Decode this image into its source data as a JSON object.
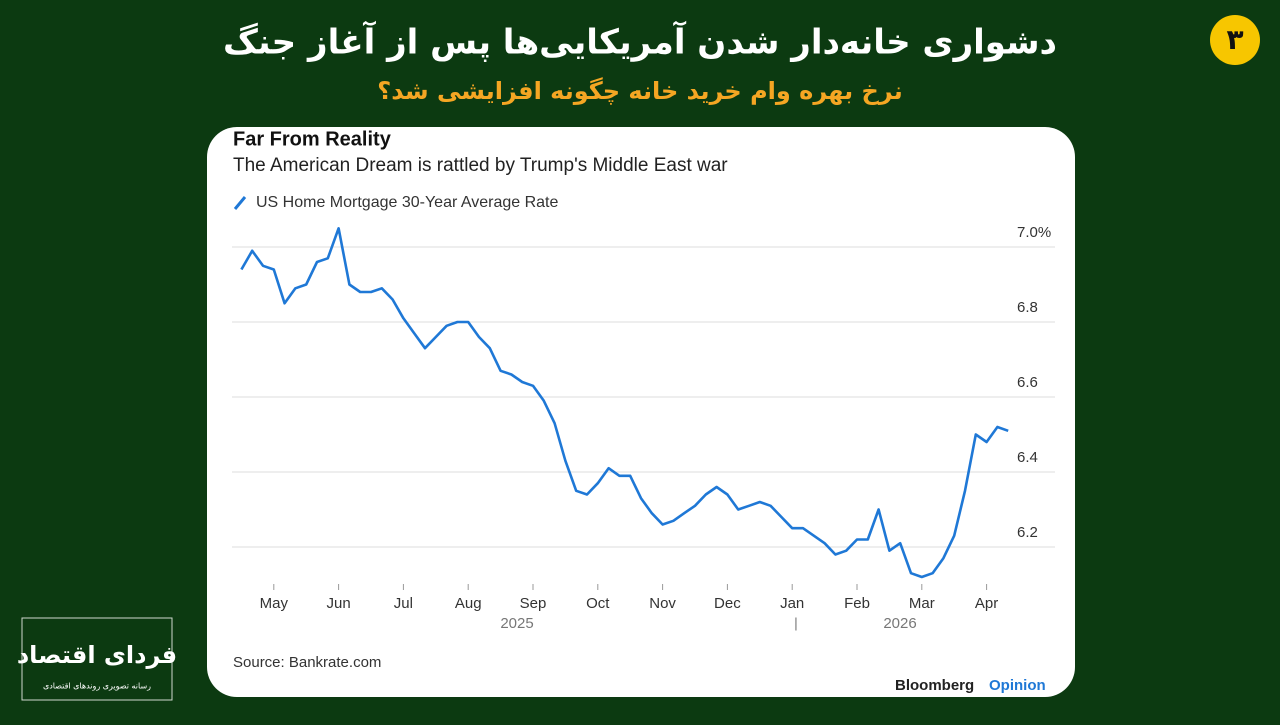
{
  "header": {
    "title": "دشواری خانه‌دار شدن آمریکایی‌ها پس از آغاز جنگ",
    "subtitle": "نرخ بهره وام خرید خانه چگونه افزایشی شد؟",
    "badge": "۳"
  },
  "logo": {
    "name": "فردای اقتصاد",
    "tagline": "رسانه تصویری روندهای اقتصادی"
  },
  "chart_data": {
    "type": "line",
    "title": "Far From Reality",
    "subtitle": "The American Dream is rattled by Trump's Middle East war",
    "categories": [
      null,
      null,
      null,
      "May",
      null,
      null,
      null,
      null,
      null,
      "Jun",
      null,
      null,
      null,
      null,
      null,
      "Jul",
      null,
      null,
      null,
      null,
      null,
      "Aug",
      null,
      null,
      null,
      null,
      null,
      "Sep",
      null,
      null,
      null,
      null,
      null,
      "Oct",
      null,
      null,
      null,
      null,
      null,
      "Nov",
      null,
      null,
      null,
      null,
      null,
      "Dec",
      null,
      null,
      null,
      null,
      null,
      "Jan",
      null,
      null,
      null,
      null,
      null,
      "Feb",
      null,
      null,
      null,
      null,
      null,
      "Mar",
      null,
      null,
      null,
      null,
      null,
      "Apr",
      null,
      null
    ],
    "years": [
      "2025",
      "2026"
    ],
    "series": [
      {
        "name": "US Home Mortgage 30-Year Average Rate",
        "color": "#1f78d6",
        "values": [
          6.94,
          6.99,
          6.95,
          6.94,
          6.85,
          6.89,
          6.9,
          6.96,
          6.97,
          7.05,
          6.9,
          6.88,
          6.88,
          6.89,
          6.86,
          6.81,
          6.77,
          6.73,
          6.76,
          6.79,
          6.8,
          6.8,
          6.76,
          6.73,
          6.67,
          6.66,
          6.64,
          6.63,
          6.59,
          6.53,
          6.43,
          6.35,
          6.34,
          6.37,
          6.41,
          6.39,
          6.39,
          6.33,
          6.29,
          6.26,
          6.27,
          6.29,
          6.31,
          6.34,
          6.36,
          6.34,
          6.3,
          6.31,
          6.32,
          6.31,
          6.28,
          6.25,
          6.25,
          6.23,
          6.21,
          6.18,
          6.19,
          6.22,
          6.22,
          6.3,
          6.19,
          6.21,
          6.13,
          6.12,
          6.13,
          6.17,
          6.23,
          6.35,
          6.5,
          6.48,
          6.52,
          6.51
        ]
      }
    ],
    "ylim": [
      6.1,
      7.07
    ],
    "yticks": [
      6.2,
      6.4,
      6.6,
      6.8,
      {
        "value": 7,
        "label": "7.0%"
      }
    ],
    "grid": true,
    "source": "Source: Bankrate.com"
  },
  "footer": {
    "brand": "Bloomberg",
    "brand_suffix": "Opinion"
  }
}
